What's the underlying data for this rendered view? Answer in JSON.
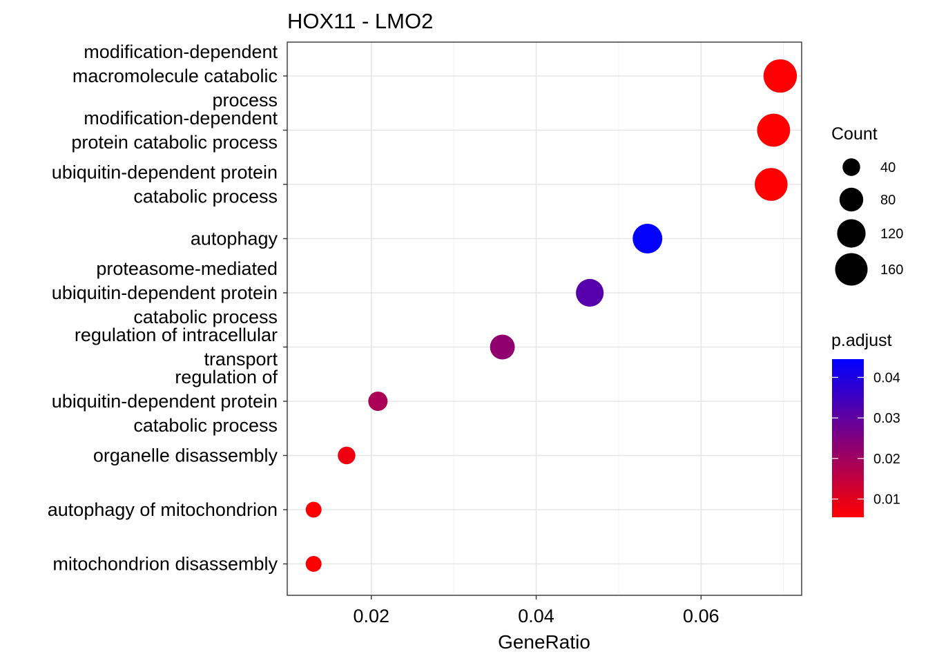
{
  "chart_data": {
    "type": "scatter",
    "title": "HOX11 - LMO2",
    "xlabel": "GeneRatio",
    "ylabel": "",
    "xlim": [
      0.0098,
      0.0722
    ],
    "x_ticks": [
      0.02,
      0.04,
      0.06
    ],
    "x_tick_labels": [
      "0.02",
      "0.04",
      "0.06"
    ],
    "grid": true,
    "categories": [
      "modification-dependent macromolecule catabolic process",
      "modification-dependent protein catabolic process",
      "ubiquitin-dependent protein catabolic process",
      "autophagy",
      "proteasome-mediated ubiquitin-dependent protein catabolic process",
      "regulation of intracellular transport",
      "regulation of ubiquitin-dependent protein catabolic process",
      "organelle disassembly",
      "autophagy of mitochondrion",
      "mitochondrion disassembly"
    ],
    "category_label_lines": [
      [
        "modification-dependent",
        "macromolecule catabolic",
        "process"
      ],
      [
        "modification-dependent",
        "protein catabolic process"
      ],
      [
        "ubiquitin-dependent protein",
        "catabolic process"
      ],
      [
        "autophagy"
      ],
      [
        "proteasome-mediated",
        "ubiquitin-dependent protein",
        "catabolic process"
      ],
      [
        "regulation of intracellular",
        "transport"
      ],
      [
        "regulation of",
        "ubiquitin-dependent protein",
        "catabolic process"
      ],
      [
        "organelle disassembly"
      ],
      [
        "autophagy of mitochondrion"
      ],
      [
        "mitochondrion disassembly"
      ]
    ],
    "x": [
      0.0696,
      0.0688,
      0.0685,
      0.0535,
      0.0465,
      0.0359,
      0.0208,
      0.017,
      0.013,
      0.013
    ],
    "count": [
      170,
      166,
      164,
      131,
      113,
      88,
      50,
      40,
      31,
      31
    ],
    "p_adjust": [
      0.006,
      0.0055,
      0.0055,
      0.044,
      0.0315,
      0.0225,
      0.0185,
      0.008,
      0.006,
      0.006
    ],
    "legend": {
      "position": "right",
      "size_title": "Count",
      "size_values": [
        40,
        80,
        120,
        160
      ],
      "color_title": "p.adjust",
      "color_ticks": [
        0.01,
        0.02,
        0.03,
        0.04
      ],
      "color_tick_labels": [
        "0.01",
        "0.02",
        "0.03",
        "0.04"
      ],
      "color_low": "#ff0000",
      "color_high": "#0000ff",
      "color_range": [
        0.0055,
        0.0445
      ]
    }
  }
}
